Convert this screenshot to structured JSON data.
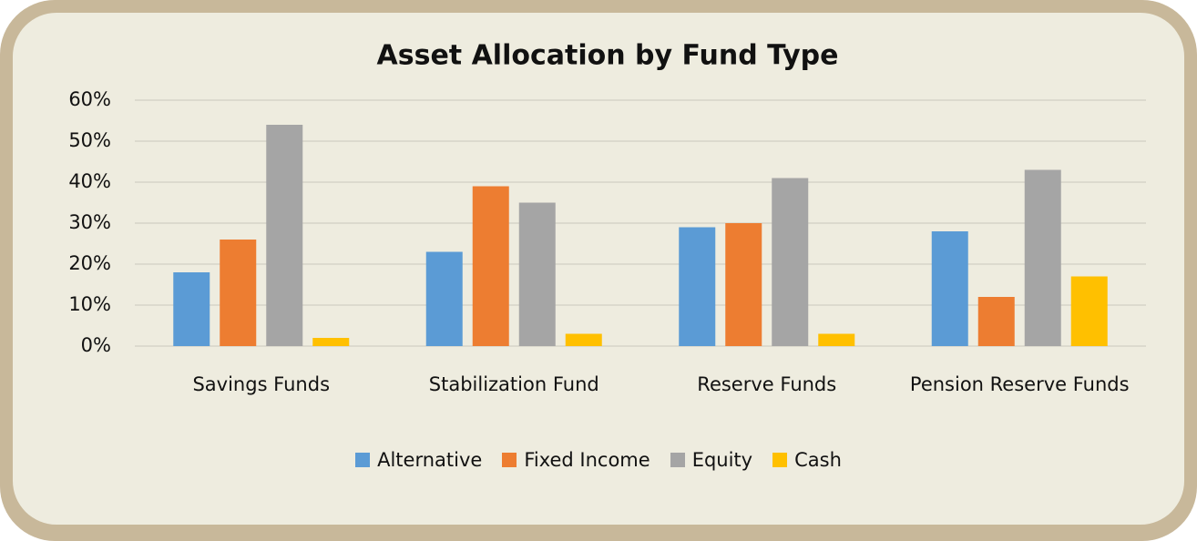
{
  "chart_data": {
    "type": "bar",
    "title": "Asset Allocation by Fund Type",
    "categories": [
      "Savings Funds",
      "Stabilization Fund",
      "Reserve Funds",
      "Pension Reserve Funds"
    ],
    "series": [
      {
        "name": "Alternative",
        "color": "#5b9bd5",
        "values": [
          18,
          23,
          29,
          28
        ]
      },
      {
        "name": "Fixed Income",
        "color": "#ed7d31",
        "values": [
          26,
          39,
          30,
          12
        ]
      },
      {
        "name": "Equity",
        "color": "#a5a5a5",
        "values": [
          54,
          35,
          41,
          43
        ]
      },
      {
        "name": "Cash",
        "color": "#ffc000",
        "values": [
          2,
          3,
          3,
          17
        ]
      }
    ],
    "ylim": [
      0,
      60
    ],
    "yticks": [
      {
        "value": 0,
        "label": "0%"
      },
      {
        "value": 10,
        "label": "10%"
      },
      {
        "value": 20,
        "label": "20%"
      },
      {
        "value": 30,
        "label": "30%"
      },
      {
        "value": 40,
        "label": "40%"
      },
      {
        "value": 50,
        "label": "50%"
      },
      {
        "value": 60,
        "label": "60%"
      }
    ],
    "grid": true,
    "legend": "bottom"
  }
}
